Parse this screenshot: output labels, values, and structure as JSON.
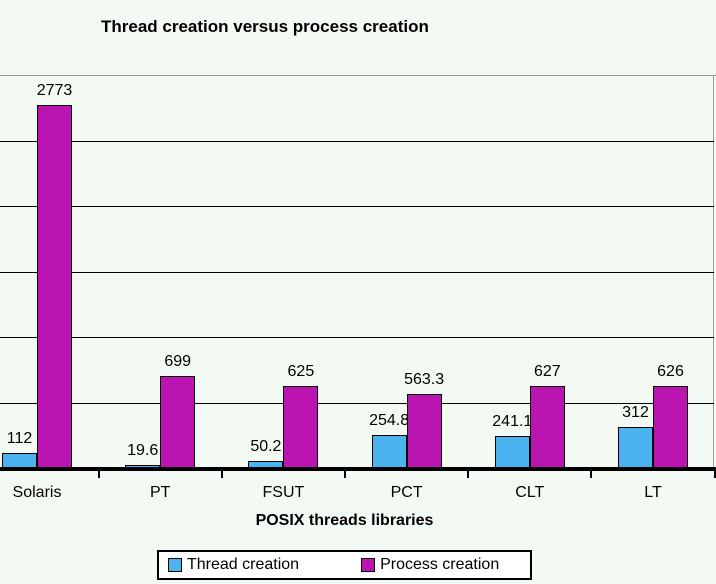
{
  "chart_data": {
    "type": "bar",
    "title": "Thread creation versus process creation",
    "xlabel": "POSIX threads libraries",
    "ylabel": "",
    "categories": [
      "Solaris",
      "PT",
      "FSUT",
      "PCT",
      "CLT",
      "LT"
    ],
    "series": [
      {
        "name": "Thread creation",
        "color": "#4AB3F0",
        "values": [
          112,
          19.6,
          50.2,
          254.8,
          241.1,
          312
        ],
        "labels": [
          "112",
          "19.6",
          "50.2",
          "254.8",
          "241.1",
          "312"
        ]
      },
      {
        "name": "Process creation",
        "color": "#BB15B1",
        "values": [
          2773,
          699,
          625,
          563.3,
          627,
          626
        ],
        "labels": [
          "2773",
          "699",
          "625",
          "563.3",
          "627",
          "626"
        ]
      }
    ],
    "ylim": [
      0,
      3000
    ],
    "gridline_step": 500,
    "grid": "horizontal",
    "y_axis_tick_labels_visible": false,
    "data_labels_position": "above-bars",
    "legend_position": "bottom"
  },
  "colors": {
    "background": "#F3FAF3",
    "plot_border": "#8FA194",
    "gridline": "#000000",
    "axis_line": "#000000",
    "tick": "#000000",
    "legend_background": "#FFFFFF",
    "legend_border": "#000000",
    "text": "#000000"
  }
}
